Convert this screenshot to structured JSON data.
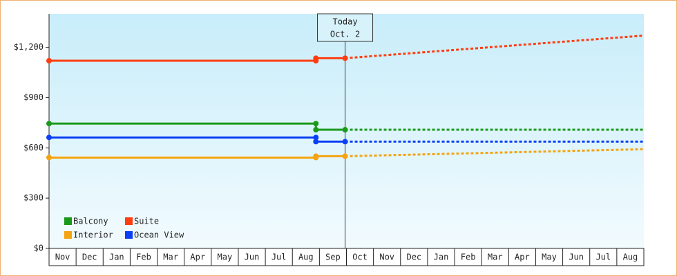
{
  "chart_data": {
    "type": "line",
    "categories": [
      "Nov",
      "Dec",
      "Jan",
      "Feb",
      "Mar",
      "Apr",
      "May",
      "Jun",
      "Jul",
      "Aug",
      "Sep",
      "Oct",
      "Nov",
      "Dec",
      "Jan",
      "Feb",
      "Mar",
      "Apr",
      "May",
      "Jun",
      "Jul",
      "Aug"
    ],
    "xlim": [
      0,
      22
    ],
    "ylim": [
      0,
      1400
    ],
    "yticks": [
      {
        "value": 0,
        "label": "$0"
      },
      {
        "value": 300,
        "label": "$300"
      },
      {
        "value": 600,
        "label": "$600"
      },
      {
        "value": 900,
        "label": "$900"
      },
      {
        "value": 1200,
        "label": "$1,200"
      }
    ],
    "today": {
      "x": 10.95,
      "label": "Today",
      "date": "Oct. 2"
    },
    "series": [
      {
        "name": "Balcony",
        "color": "#1a9a1a",
        "x": [
          0,
          9.87,
          9.87,
          10.95,
          22
        ],
        "values": [
          745,
          745,
          708,
          708,
          708
        ]
      },
      {
        "name": "Suite",
        "color": "#ff3d10",
        "x": [
          0,
          9.87,
          9.87,
          10.95,
          22
        ],
        "values": [
          1120,
          1120,
          1135,
          1135,
          1270
        ]
      },
      {
        "name": "Interior",
        "color": "#f5a310",
        "x": [
          0,
          9.87,
          9.87,
          10.95,
          22
        ],
        "values": [
          542,
          542,
          550,
          550,
          592
        ]
      },
      {
        "name": "Ocean View",
        "color": "#0b3ef5",
        "x": [
          0,
          9.87,
          9.87,
          10.95,
          22
        ],
        "values": [
          662,
          662,
          637,
          637,
          637
        ]
      }
    ]
  }
}
